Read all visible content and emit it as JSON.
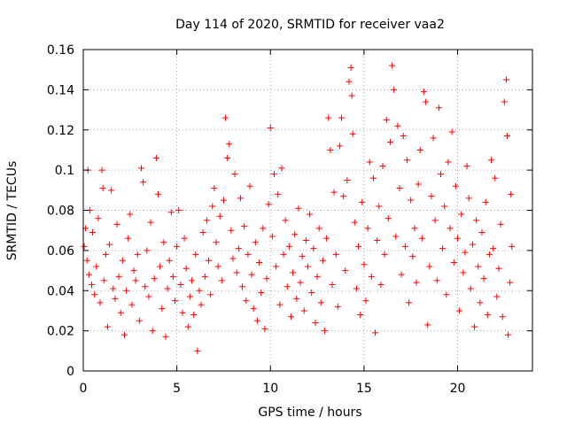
{
  "chart_data": {
    "type": "scatter",
    "title": "Day 114 of 2020, SRMTID for receiver vaa2",
    "xlabel": "GPS time / hours",
    "ylabel": "SRMTID / TECUs",
    "xlim": [
      0,
      24
    ],
    "ylim": [
      0,
      0.16
    ],
    "x_ticks": [
      0,
      5,
      10,
      15,
      20
    ],
    "x_tick_labels": [
      "0",
      "5",
      "10",
      "15",
      "20"
    ],
    "y_ticks": [
      0,
      0.02,
      0.04,
      0.06,
      0.08,
      0.1,
      0.12,
      0.14,
      0.16
    ],
    "y_tick_labels": [
      "0",
      "0.02",
      "0.04",
      "0.06",
      "0.08",
      "0.1",
      "0.12",
      "0.14",
      "0.16"
    ],
    "grid": true,
    "marker": "+",
    "color": "#ff0000",
    "series": [
      {
        "name": "vaa2",
        "points": [
          [
            0.05,
            0.062
          ],
          [
            0.12,
            0.071
          ],
          [
            0.2,
            0.055
          ],
          [
            0.25,
            0.1
          ],
          [
            0.3,
            0.048
          ],
          [
            0.35,
            0.08
          ],
          [
            0.45,
            0.043
          ],
          [
            0.5,
            0.069
          ],
          [
            0.6,
            0.038
          ],
          [
            0.7,
            0.052
          ],
          [
            0.8,
            0.076
          ],
          [
            0.9,
            0.034
          ],
          [
            1.0,
            0.1
          ],
          [
            1.05,
            0.091
          ],
          [
            1.1,
            0.045
          ],
          [
            1.2,
            0.058
          ],
          [
            1.3,
            0.022
          ],
          [
            1.4,
            0.063
          ],
          [
            1.5,
            0.09
          ],
          [
            1.6,
            0.041
          ],
          [
            1.7,
            0.036
          ],
          [
            1.8,
            0.073
          ],
          [
            1.9,
            0.047
          ],
          [
            2.0,
            0.029
          ],
          [
            2.1,
            0.055
          ],
          [
            2.2,
            0.018
          ],
          [
            2.3,
            0.04
          ],
          [
            2.4,
            0.066
          ],
          [
            2.5,
            0.078
          ],
          [
            2.6,
            0.033
          ],
          [
            2.7,
            0.05
          ],
          [
            2.8,
            0.045
          ],
          [
            2.9,
            0.058
          ],
          [
            3.0,
            0.025
          ],
          [
            3.1,
            0.101
          ],
          [
            3.2,
            0.094
          ],
          [
            3.3,
            0.042
          ],
          [
            3.4,
            0.06
          ],
          [
            3.5,
            0.037
          ],
          [
            3.6,
            0.074
          ],
          [
            3.7,
            0.02
          ],
          [
            3.8,
            0.046
          ],
          [
            3.9,
            0.106
          ],
          [
            4.0,
            0.088
          ],
          [
            4.1,
            0.052
          ],
          [
            4.2,
            0.031
          ],
          [
            4.3,
            0.064
          ],
          [
            4.4,
            0.017
          ],
          [
            4.5,
            0.041
          ],
          [
            4.6,
            0.055
          ],
          [
            4.7,
            0.079
          ],
          [
            4.8,
            0.047
          ],
          [
            4.9,
            0.035
          ],
          [
            5.0,
            0.062
          ],
          [
            5.1,
            0.08
          ],
          [
            5.2,
            0.043
          ],
          [
            5.3,
            0.029
          ],
          [
            5.4,
            0.066
          ],
          [
            5.5,
            0.051
          ],
          [
            5.6,
            0.022
          ],
          [
            5.7,
            0.037
          ],
          [
            5.8,
            0.045
          ],
          [
            5.9,
            0.028
          ],
          [
            6.0,
            0.058
          ],
          [
            6.1,
            0.01
          ],
          [
            6.2,
            0.04
          ],
          [
            6.3,
            0.033
          ],
          [
            6.4,
            0.069
          ],
          [
            6.5,
            0.047
          ],
          [
            6.6,
            0.075
          ],
          [
            6.7,
            0.055
          ],
          [
            6.8,
            0.038
          ],
          [
            6.9,
            0.082
          ],
          [
            7.0,
            0.091
          ],
          [
            7.1,
            0.064
          ],
          [
            7.2,
            0.052
          ],
          [
            7.3,
            0.077
          ],
          [
            7.4,
            0.045
          ],
          [
            7.5,
            0.085
          ],
          [
            7.6,
            0.126
          ],
          [
            7.7,
            0.106
          ],
          [
            7.8,
            0.113
          ],
          [
            7.9,
            0.07
          ],
          [
            8.0,
            0.056
          ],
          [
            8.1,
            0.098
          ],
          [
            8.2,
            0.049
          ],
          [
            8.3,
            0.061
          ],
          [
            8.4,
            0.086
          ],
          [
            8.5,
            0.042
          ],
          [
            8.6,
            0.072
          ],
          [
            8.7,
            0.035
          ],
          [
            8.8,
            0.058
          ],
          [
            8.9,
            0.092
          ],
          [
            9.0,
            0.048
          ],
          [
            9.1,
            0.031
          ],
          [
            9.2,
            0.064
          ],
          [
            9.3,
            0.025
          ],
          [
            9.4,
            0.054
          ],
          [
            9.5,
            0.039
          ],
          [
            9.6,
            0.071
          ],
          [
            9.7,
            0.021
          ],
          [
            9.8,
            0.046
          ],
          [
            9.9,
            0.083
          ],
          [
            10.0,
            0.121
          ],
          [
            10.1,
            0.067
          ],
          [
            10.2,
            0.098
          ],
          [
            10.3,
            0.052
          ],
          [
            10.4,
            0.088
          ],
          [
            10.5,
            0.033
          ],
          [
            10.6,
            0.101
          ],
          [
            10.7,
            0.058
          ],
          [
            10.8,
            0.075
          ],
          [
            10.9,
            0.042
          ],
          [
            11.0,
            0.062
          ],
          [
            11.1,
            0.027
          ],
          [
            11.2,
            0.049
          ],
          [
            11.3,
            0.068
          ],
          [
            11.4,
            0.036
          ],
          [
            11.5,
            0.081
          ],
          [
            11.6,
            0.044
          ],
          [
            11.7,
            0.057
          ],
          [
            11.8,
            0.03
          ],
          [
            11.9,
            0.065
          ],
          [
            12.0,
            0.052
          ],
          [
            12.1,
            0.078
          ],
          [
            12.2,
            0.039
          ],
          [
            12.3,
            0.061
          ],
          [
            12.4,
            0.024
          ],
          [
            12.5,
            0.047
          ],
          [
            12.6,
            0.071
          ],
          [
            12.7,
            0.034
          ],
          [
            12.8,
            0.055
          ],
          [
            12.9,
            0.02
          ],
          [
            13.0,
            0.066
          ],
          [
            13.1,
            0.126
          ],
          [
            13.2,
            0.11
          ],
          [
            13.3,
            0.043
          ],
          [
            13.4,
            0.089
          ],
          [
            13.5,
            0.058
          ],
          [
            13.6,
            0.032
          ],
          [
            13.7,
            0.112
          ],
          [
            13.8,
            0.126
          ],
          [
            13.9,
            0.087
          ],
          [
            14.0,
            0.05
          ],
          [
            14.1,
            0.095
          ],
          [
            14.2,
            0.144
          ],
          [
            14.3,
            0.151
          ],
          [
            14.35,
            0.137
          ],
          [
            14.4,
            0.118
          ],
          [
            14.5,
            0.074
          ],
          [
            14.6,
            0.041
          ],
          [
            14.7,
            0.062
          ],
          [
            14.8,
            0.028
          ],
          [
            14.9,
            0.084
          ],
          [
            15.0,
            0.053
          ],
          [
            15.1,
            0.035
          ],
          [
            15.2,
            0.071
          ],
          [
            15.3,
            0.104
          ],
          [
            15.4,
            0.047
          ],
          [
            15.5,
            0.096
          ],
          [
            15.6,
            0.019
          ],
          [
            15.7,
            0.065
          ],
          [
            15.8,
            0.082
          ],
          [
            15.9,
            0.043
          ],
          [
            16.0,
            0.102
          ],
          [
            16.1,
            0.058
          ],
          [
            16.2,
            0.125
          ],
          [
            16.3,
            0.076
          ],
          [
            16.4,
            0.114
          ],
          [
            16.5,
            0.152
          ],
          [
            16.6,
            0.14
          ],
          [
            16.7,
            0.067
          ],
          [
            16.8,
            0.122
          ],
          [
            16.9,
            0.091
          ],
          [
            17.0,
            0.048
          ],
          [
            17.1,
            0.117
          ],
          [
            17.2,
            0.062
          ],
          [
            17.3,
            0.105
          ],
          [
            17.4,
            0.034
          ],
          [
            17.5,
            0.085
          ],
          [
            17.6,
            0.057
          ],
          [
            17.7,
            0.071
          ],
          [
            17.8,
            0.044
          ],
          [
            17.9,
            0.093
          ],
          [
            18.0,
            0.11
          ],
          [
            18.1,
            0.066
          ],
          [
            18.2,
            0.139
          ],
          [
            18.3,
            0.134
          ],
          [
            18.4,
            0.023
          ],
          [
            18.5,
            0.052
          ],
          [
            18.6,
            0.087
          ],
          [
            18.7,
            0.116
          ],
          [
            18.8,
            0.075
          ],
          [
            18.9,
            0.045
          ],
          [
            19.0,
            0.131
          ],
          [
            19.1,
            0.098
          ],
          [
            19.2,
            0.061
          ],
          [
            19.3,
            0.082
          ],
          [
            19.4,
            0.038
          ],
          [
            19.5,
            0.104
          ],
          [
            19.6,
            0.071
          ],
          [
            19.7,
            0.119
          ],
          [
            19.8,
            0.054
          ],
          [
            19.9,
            0.092
          ],
          [
            20.0,
            0.066
          ],
          [
            20.1,
            0.03
          ],
          [
            20.2,
            0.078
          ],
          [
            20.3,
            0.049
          ],
          [
            20.4,
            0.059
          ],
          [
            20.5,
            0.102
          ],
          [
            20.6,
            0.086
          ],
          [
            20.7,
            0.041
          ],
          [
            20.8,
            0.063
          ],
          [
            20.9,
            0.022
          ],
          [
            21.0,
            0.075
          ],
          [
            21.1,
            0.052
          ],
          [
            21.2,
            0.034
          ],
          [
            21.3,
            0.069
          ],
          [
            21.4,
            0.046
          ],
          [
            21.5,
            0.084
          ],
          [
            21.6,
            0.028
          ],
          [
            21.7,
            0.058
          ],
          [
            21.8,
            0.105
          ],
          [
            21.9,
            0.061
          ],
          [
            22.0,
            0.096
          ],
          [
            22.1,
            0.037
          ],
          [
            22.2,
            0.051
          ],
          [
            22.3,
            0.073
          ],
          [
            22.4,
            0.027
          ],
          [
            22.5,
            0.134
          ],
          [
            22.6,
            0.145
          ],
          [
            22.65,
            0.117
          ],
          [
            22.7,
            0.018
          ],
          [
            22.8,
            0.044
          ],
          [
            22.85,
            0.088
          ],
          [
            22.9,
            0.062
          ]
        ]
      }
    ]
  }
}
